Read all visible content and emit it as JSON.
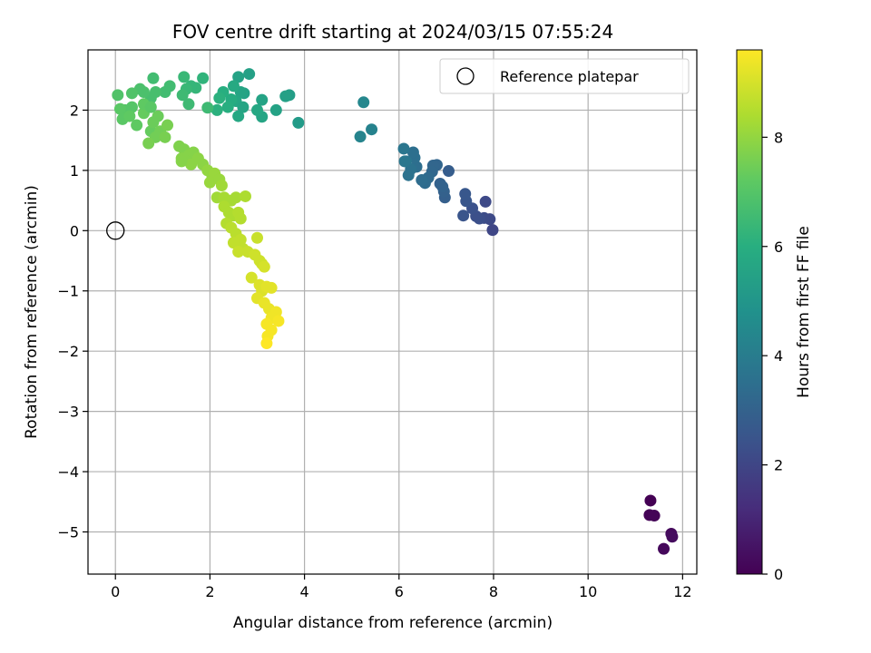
{
  "chart_data": {
    "type": "scatter",
    "title": "FOV centre drift starting at 2024/03/15 07:55:24",
    "xlabel": "Angular distance from reference (arcmin)",
    "ylabel": "Rotation from reference (arcmin)",
    "xlim": [
      -0.58,
      12.3
    ],
    "ylim": [
      -5.7,
      3.0
    ],
    "xticks": [
      0,
      2,
      4,
      6,
      8,
      10,
      12
    ],
    "xtick_labels": [
      "0",
      "2",
      "4",
      "6",
      "8",
      "10",
      "12"
    ],
    "yticks": [
      2,
      1,
      0,
      -1,
      -2,
      -3,
      -4,
      -5
    ],
    "ytick_labels": [
      "2",
      "1",
      "0",
      "−1",
      "−2",
      "−3",
      "−4",
      "−5"
    ],
    "grid": true,
    "legend": {
      "placement": "top-right",
      "entries": [
        "Reference platepar"
      ]
    },
    "reference_point": {
      "x": 0,
      "y": 0,
      "label": "Reference platepar"
    },
    "colorbar": {
      "label": "Hours from first FF file",
      "colormap": "viridis",
      "range": [
        0,
        9.6
      ],
      "ticks": [
        0,
        2,
        4,
        6,
        8
      ],
      "tick_labels": [
        "0",
        "2",
        "4",
        "6",
        "8"
      ]
    },
    "series": [
      {
        "points": [
          [
            11.32,
            -4.48,
            0.0
          ],
          [
            11.3,
            -4.72,
            0.05
          ],
          [
            11.4,
            -4.73,
            0.1
          ],
          [
            11.6,
            -5.28,
            0.2
          ],
          [
            11.76,
            -5.03,
            0.25
          ],
          [
            11.78,
            -5.08,
            0.3
          ],
          [
            7.98,
            0.01,
            2.0
          ],
          [
            7.92,
            0.19,
            2.1
          ],
          [
            7.83,
            0.48,
            2.15
          ],
          [
            7.8,
            0.21,
            2.2
          ],
          [
            7.7,
            0.2,
            2.3
          ],
          [
            7.63,
            0.24,
            2.35
          ],
          [
            7.55,
            0.37,
            2.4
          ],
          [
            7.36,
            0.25,
            2.5
          ],
          [
            7.42,
            0.49,
            2.55
          ],
          [
            7.4,
            0.61,
            2.6
          ],
          [
            7.05,
            0.99,
            2.8
          ],
          [
            6.97,
            0.55,
            2.9
          ],
          [
            6.95,
            0.65,
            2.95
          ],
          [
            6.87,
            0.78,
            3.0
          ],
          [
            6.92,
            0.73,
            3.05
          ],
          [
            6.8,
            1.09,
            3.1
          ],
          [
            6.72,
            1.08,
            3.15
          ],
          [
            6.7,
            0.98,
            3.2
          ],
          [
            6.62,
            0.88,
            3.3
          ],
          [
            6.55,
            0.79,
            3.35
          ],
          [
            6.48,
            0.84,
            3.4
          ],
          [
            6.37,
            1.06,
            3.45
          ],
          [
            6.33,
            1.21,
            3.5
          ],
          [
            6.3,
            1.3,
            3.5
          ],
          [
            6.25,
            1.02,
            3.6
          ],
          [
            6.2,
            0.92,
            3.6
          ],
          [
            6.15,
            1.15,
            3.7
          ],
          [
            6.1,
            1.36,
            3.75
          ],
          [
            6.12,
            1.15,
            3.8
          ],
          [
            5.42,
            1.68,
            4.2
          ],
          [
            5.18,
            1.56,
            4.3
          ],
          [
            5.25,
            2.13,
            4.4
          ],
          [
            3.87,
            1.79,
            5.2
          ],
          [
            3.68,
            2.25,
            5.3
          ],
          [
            3.6,
            2.23,
            5.4
          ],
          [
            3.4,
            2.0,
            5.5
          ],
          [
            3.1,
            2.17,
            5.55
          ],
          [
            3.1,
            1.89,
            5.6
          ],
          [
            3.0,
            2.0,
            5.7
          ],
          [
            2.83,
            2.6,
            5.4
          ],
          [
            2.72,
            2.28,
            5.5
          ],
          [
            2.65,
            2.3,
            5.6
          ],
          [
            2.6,
            2.55,
            5.5
          ],
          [
            2.55,
            2.15,
            5.7
          ],
          [
            2.5,
            2.4,
            5.8
          ],
          [
            2.45,
            2.18,
            5.9
          ],
          [
            2.38,
            2.05,
            6.0
          ],
          [
            2.28,
            2.3,
            6.0
          ],
          [
            2.2,
            2.2,
            6.1
          ],
          [
            2.15,
            2.0,
            6.1
          ],
          [
            2.6,
            1.9,
            5.7
          ],
          [
            2.7,
            2.05,
            5.6
          ],
          [
            1.85,
            2.53,
            6.2
          ],
          [
            1.7,
            2.37,
            6.3
          ],
          [
            1.6,
            2.4,
            6.3
          ],
          [
            1.5,
            2.35,
            6.4
          ],
          [
            1.45,
            2.55,
            6.4
          ],
          [
            1.42,
            2.25,
            6.5
          ],
          [
            1.55,
            2.1,
            6.5
          ],
          [
            1.95,
            2.04,
            6.5
          ],
          [
            1.15,
            2.4,
            6.6
          ],
          [
            1.05,
            2.3,
            6.6
          ],
          [
            0.8,
            2.53,
            6.6
          ],
          [
            0.85,
            2.3,
            6.7
          ],
          [
            0.75,
            2.2,
            6.7
          ],
          [
            0.6,
            2.3,
            6.8
          ],
          [
            0.52,
            2.35,
            6.8
          ],
          [
            0.35,
            2.28,
            6.9
          ],
          [
            0.05,
            2.25,
            6.9
          ],
          [
            0.35,
            2.05,
            7.0
          ],
          [
            0.2,
            2.0,
            7.0
          ],
          [
            0.1,
            2.02,
            7.1
          ],
          [
            0.15,
            1.85,
            7.1
          ],
          [
            0.3,
            1.9,
            7.2
          ],
          [
            0.45,
            1.75,
            7.2
          ],
          [
            0.6,
            1.95,
            7.3
          ],
          [
            0.75,
            1.65,
            7.3
          ],
          [
            0.8,
            1.8,
            7.4
          ],
          [
            0.9,
            1.9,
            7.4
          ],
          [
            0.95,
            1.65,
            7.5
          ],
          [
            0.85,
            1.55,
            7.5
          ],
          [
            0.7,
            1.45,
            7.6
          ],
          [
            1.05,
            1.55,
            7.6
          ],
          [
            1.1,
            1.75,
            7.6
          ],
          [
            0.6,
            2.1,
            7.2
          ],
          [
            0.75,
            2.05,
            7.1
          ],
          [
            1.35,
            1.4,
            7.7
          ],
          [
            1.45,
            1.35,
            7.7
          ],
          [
            1.4,
            1.2,
            7.8
          ],
          [
            1.55,
            1.25,
            7.8
          ],
          [
            1.65,
            1.3,
            7.8
          ],
          [
            1.75,
            1.2,
            7.9
          ],
          [
            1.6,
            1.1,
            7.9
          ],
          [
            1.85,
            1.1,
            7.9
          ],
          [
            1.95,
            1.0,
            8.0
          ],
          [
            2.05,
            0.9,
            8.0
          ],
          [
            2.1,
            0.95,
            8.1
          ],
          [
            2.0,
            0.8,
            8.1
          ],
          [
            2.2,
            0.85,
            8.1
          ],
          [
            2.25,
            0.75,
            8.2
          ],
          [
            1.4,
            1.15,
            7.8
          ],
          [
            2.15,
            0.55,
            8.2
          ],
          [
            2.3,
            0.55,
            8.3
          ],
          [
            2.45,
            0.5,
            8.3
          ],
          [
            2.55,
            0.55,
            8.3
          ],
          [
            2.3,
            0.4,
            8.4
          ],
          [
            2.4,
            0.3,
            8.4
          ],
          [
            2.5,
            0.25,
            8.4
          ],
          [
            2.35,
            0.12,
            8.5
          ],
          [
            2.6,
            0.3,
            8.5
          ],
          [
            2.65,
            0.2,
            8.5
          ],
          [
            2.75,
            0.57,
            8.4
          ],
          [
            2.45,
            0.05,
            8.6
          ],
          [
            2.55,
            -0.05,
            8.6
          ],
          [
            2.65,
            -0.15,
            8.7
          ],
          [
            2.5,
            -0.2,
            8.7
          ],
          [
            2.7,
            -0.3,
            8.7
          ],
          [
            2.6,
            -0.35,
            8.8
          ],
          [
            2.8,
            -0.35,
            8.8
          ],
          [
            3.0,
            -0.12,
            8.8
          ],
          [
            2.95,
            -0.4,
            8.9
          ],
          [
            3.05,
            -0.5,
            8.9
          ],
          [
            3.1,
            -0.55,
            8.9
          ],
          [
            3.15,
            -0.6,
            9.0
          ],
          [
            2.88,
            -0.78,
            9.0
          ],
          [
            3.05,
            -0.9,
            9.1
          ],
          [
            3.1,
            -1.0,
            9.1
          ],
          [
            3.2,
            -0.93,
            9.2
          ],
          [
            3.3,
            -0.95,
            9.2
          ],
          [
            3.0,
            -1.12,
            9.2
          ],
          [
            3.15,
            -1.2,
            9.3
          ],
          [
            3.25,
            -1.3,
            9.3
          ],
          [
            3.4,
            -1.35,
            9.4
          ],
          [
            3.3,
            -1.45,
            9.4
          ],
          [
            3.2,
            -1.55,
            9.5
          ],
          [
            3.45,
            -1.5,
            9.5
          ],
          [
            3.3,
            -1.65,
            9.5
          ],
          [
            3.22,
            -1.75,
            9.5
          ],
          [
            3.2,
            -1.87,
            9.6
          ]
        ]
      }
    ]
  }
}
